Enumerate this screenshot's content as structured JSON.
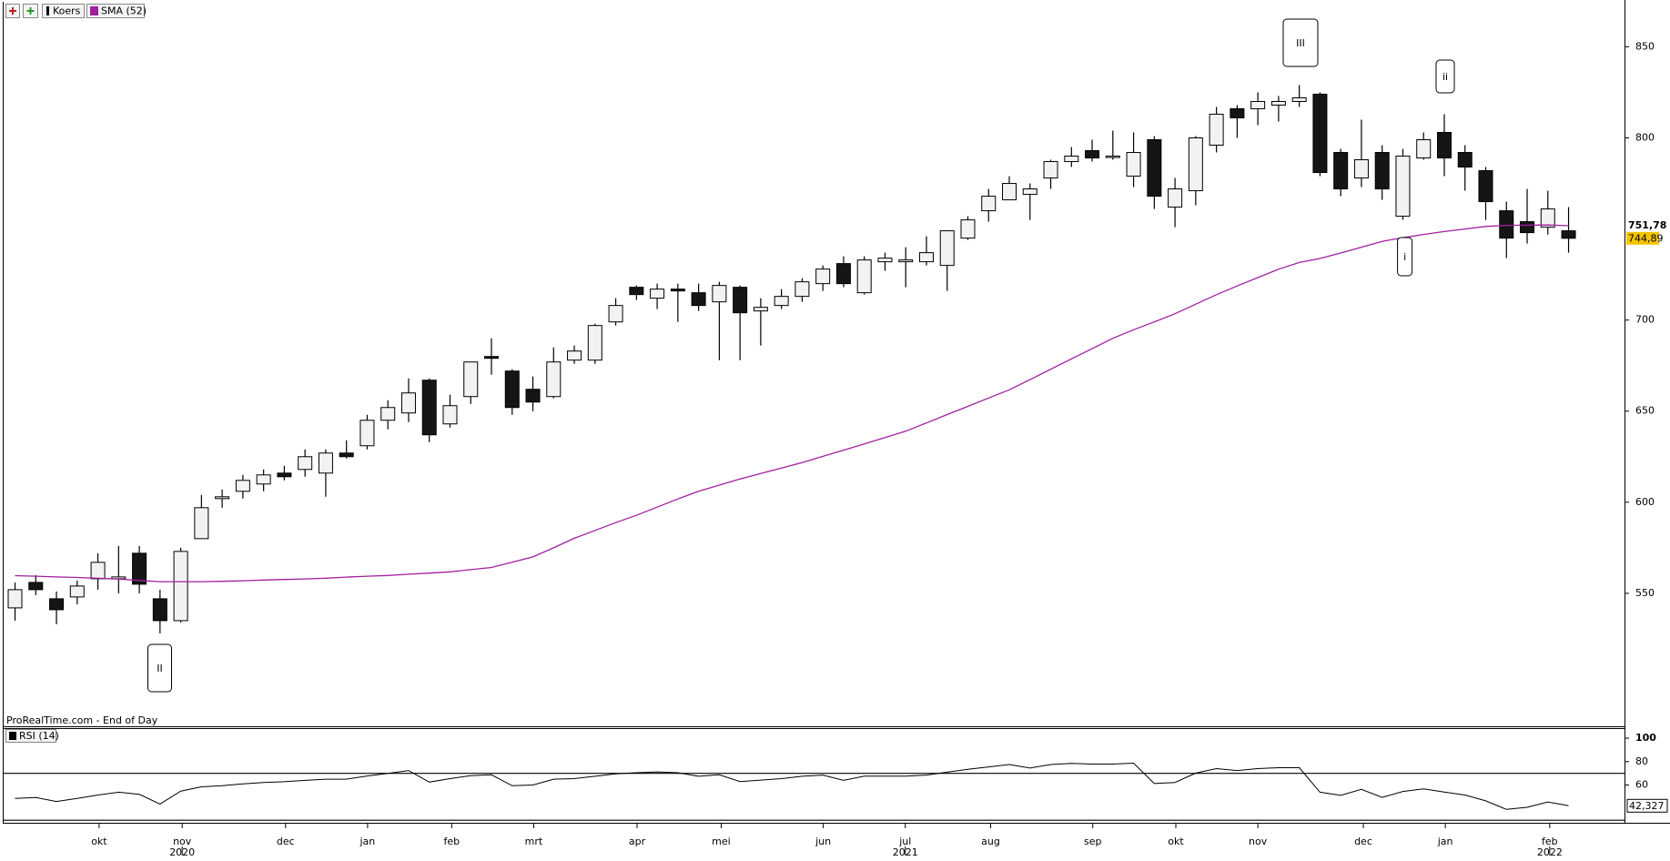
{
  "chart_data": [
    {
      "type": "candlestick",
      "source": "ProRealTime.com - End of Day",
      "xlim": [
        -0.55,
        77.7
      ],
      "ylim": [
        477,
        872.7
      ],
      "yticks": [
        550,
        600,
        650,
        700,
        800,
        850
      ],
      "series": [
        {
          "name": "Koers",
          "color": "#000000",
          "up_color": "#f2f2f2",
          "down_color": "#151515",
          "label_color": "#f5c400",
          "open": [
            542,
            556,
            547,
            548,
            558,
            558,
            572,
            547,
            535,
            580,
            602,
            606,
            610,
            616,
            618,
            616,
            627,
            631,
            645,
            649,
            667,
            643,
            658,
            680,
            672,
            662,
            658,
            678,
            678,
            699,
            718,
            712,
            717,
            715,
            710,
            718,
            705,
            708,
            713,
            720,
            731,
            715,
            732,
            732,
            732,
            730,
            745,
            760,
            766,
            769,
            778,
            787,
            793,
            790,
            779,
            799,
            762,
            771,
            796,
            816,
            816,
            818,
            820,
            824,
            792,
            778,
            792,
            757,
            789,
            803,
            792,
            782,
            760,
            754,
            751,
            749
          ],
          "high": [
            556,
            560,
            551,
            557,
            572,
            576,
            576,
            552,
            575,
            604,
            607,
            615,
            618,
            620,
            629,
            629,
            634,
            648,
            656,
            668,
            668,
            659,
            677,
            690,
            673,
            669,
            685,
            686,
            698,
            712,
            719,
            720,
            720,
            720,
            721,
            719,
            712,
            717,
            723,
            730,
            735,
            735,
            737,
            740,
            746,
            749,
            757,
            772,
            779,
            775,
            788,
            795,
            799,
            804,
            803,
            801,
            778,
            801,
            817,
            818,
            825,
            823,
            829,
            825,
            794,
            810,
            796,
            794,
            803,
            813,
            796,
            784,
            765,
            772,
            771,
            762
          ],
          "low": [
            535,
            549,
            533,
            544,
            552,
            550,
            550,
            528,
            534,
            580,
            597,
            602,
            606,
            612,
            614,
            603,
            624,
            629,
            640,
            644,
            633,
            641,
            654,
            670,
            648,
            650,
            657,
            676,
            676,
            697,
            711,
            706,
            699,
            705,
            678,
            678,
            686,
            706,
            710,
            716,
            718,
            714,
            727,
            718,
            730,
            716,
            744,
            754,
            766,
            755,
            772,
            784,
            787,
            788,
            773,
            761,
            751,
            763,
            792,
            800,
            807,
            809,
            817,
            779,
            768,
            773,
            766,
            755,
            788,
            779,
            771,
            755,
            734,
            742,
            747,
            737
          ],
          "close": [
            552,
            552,
            541,
            554,
            567,
            559,
            555,
            535,
            573,
            597,
            603,
            612,
            615,
            614,
            625,
            627,
            625,
            645,
            652,
            660,
            637,
            653,
            677,
            679,
            652,
            655,
            677,
            683,
            697,
            708,
            714,
            717,
            716,
            708,
            719,
            704,
            707,
            713,
            721,
            728,
            720,
            733,
            734,
            733,
            737,
            749,
            755,
            768,
            775,
            772,
            787,
            790,
            789,
            790,
            792,
            768,
            772,
            800,
            813,
            811,
            820,
            820,
            822,
            781,
            772,
            788,
            772,
            790,
            799,
            789,
            784,
            765,
            745,
            748,
            761,
            744.89
          ],
          "last_label": {
            "value": 744.89,
            "label": "744,89"
          }
        },
        {
          "name": "SMA (52)",
          "color": "#a020a0",
          "values": [
            559.7,
            559.4,
            559.0,
            558.7,
            558.3,
            557.8,
            557.1,
            556.4,
            556.4,
            556.4,
            556.6,
            556.9,
            557.3,
            557.6,
            557.9,
            558.3,
            558.9,
            559.4,
            559.8,
            560.5,
            561.1,
            561.8,
            563.0,
            564.2,
            567.1,
            570.0,
            575.0,
            580.2,
            584.5,
            588.8,
            592.8,
            597.3,
            601.8,
            606.0,
            609.4,
            612.8,
            615.8,
            618.8,
            621.8,
            625.2,
            628.6,
            632.0,
            635.5,
            639.0,
            643.5,
            648.1,
            652.6,
            657.2,
            661.7,
            667.3,
            673.0,
            678.7,
            684.3,
            690.0,
            694.7,
            699.0,
            703.5,
            708.7,
            713.9,
            718.7,
            723.3,
            727.9,
            731.6,
            733.8,
            736.8,
            740.0,
            743.2,
            745.2,
            747.0,
            748.6,
            750.0,
            751.4,
            752.0,
            752.1,
            752.2,
            751.78
          ],
          "last_label": {
            "value": 751.78,
            "label": "751,78"
          }
        }
      ],
      "annotations": [
        {
          "text": "II",
          "color": "#1a8a1a"
        },
        {
          "text": "III",
          "color": "#1a8a1a"
        },
        {
          "text": "ii",
          "color": "#d02020"
        },
        {
          "text": "i",
          "color": "#d02020"
        }
      ]
    },
    {
      "type": "line",
      "name": "RSI (14)",
      "color": "#000000",
      "xlim": [
        -0.55,
        77.7
      ],
      "ylim": [
        27.8,
        107.8
      ],
      "yticks": [
        100,
        80,
        60
      ],
      "levels": [
        70,
        30
      ],
      "values": [
        48.5,
        49.3,
        46,
        48.5,
        51.5,
        53.9,
        52,
        43.8,
        54.8,
        58.5,
        59.5,
        61,
        62.2,
        62.8,
        64,
        65,
        65,
        67.7,
        70,
        72.4,
        62.5,
        65.5,
        68,
        68.7,
        59.4,
        60,
        65,
        65.5,
        67.5,
        69.5,
        70.5,
        71.2,
        70.5,
        67.5,
        68.7,
        63,
        64.2,
        65.5,
        67.5,
        68.5,
        64,
        67.6,
        67.6,
        67.6,
        68.5,
        71,
        73.5,
        75.5,
        77.5,
        74.5,
        77.5,
        78.5,
        77.9,
        77.9,
        78.7,
        61.3,
        62.2,
        70.2,
        74,
        72.4,
        74,
        74.8,
        74.8,
        53.9,
        51.2,
        56.3,
        49.5,
        54.5,
        56.7,
        54,
        51.5,
        46.5,
        39.2,
        41,
        45.6,
        42.327
      ],
      "last_label": {
        "value": 42.327,
        "label": "42,327"
      },
      "xticks": [
        {
          "value": 4.06,
          "label": "okt"
        },
        {
          "value": 8.07,
          "label": "nov"
        },
        {
          "value": 13.06,
          "label": "dec"
        },
        {
          "value": 17.02,
          "label": "jan"
        },
        {
          "value": 21.08,
          "label": "feb"
        },
        {
          "value": 25.04,
          "label": "mrt"
        },
        {
          "value": 30.03,
          "label": "apr"
        },
        {
          "value": 34.09,
          "label": "mei"
        },
        {
          "value": 39.02,
          "label": "jun"
        },
        {
          "value": 42.98,
          "label": "jul"
        },
        {
          "value": 47.1,
          "label": "aug"
        },
        {
          "value": 52.03,
          "label": "sep"
        },
        {
          "value": 56.04,
          "label": "okt"
        },
        {
          "value": 60.0,
          "label": "nov"
        },
        {
          "value": 65.09,
          "label": "dec"
        },
        {
          "value": 69.05,
          "label": "jan"
        },
        {
          "value": 74.09,
          "label": "feb"
        }
      ],
      "year_labels": [
        {
          "value": 8.07,
          "label": "2020"
        },
        {
          "value": 42.98,
          "label": "2021"
        },
        {
          "value": 74.09,
          "label": "2022"
        }
      ]
    }
  ]
}
